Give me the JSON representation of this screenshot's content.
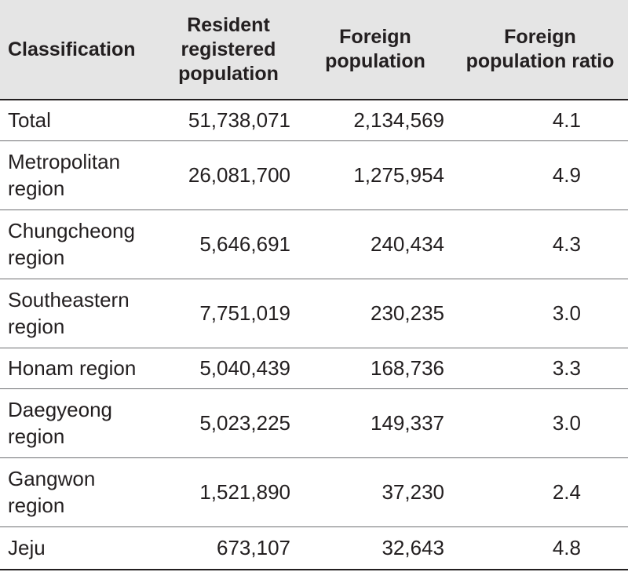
{
  "table": {
    "headers": {
      "classification": "Classification",
      "resident": "Resident registered population",
      "foreign": "Foreign population",
      "ratio": "Foreign population ratio"
    },
    "rows": [
      {
        "name": "Total",
        "resident": "51,738,071",
        "foreign": "2,134,569",
        "ratio": "4.1"
      },
      {
        "name": "Metropolitan region",
        "resident": "26,081,700",
        "foreign": "1,275,954",
        "ratio": "4.9"
      },
      {
        "name": "Chungcheong region",
        "resident": "5,646,691",
        "foreign": "240,434",
        "ratio": "4.3"
      },
      {
        "name": "Southeastern region",
        "resident": "7,751,019",
        "foreign": "230,235",
        "ratio": "3.0"
      },
      {
        "name": "Honam region",
        "resident": "5,040,439",
        "foreign": "168,736",
        "ratio": "3.3"
      },
      {
        "name": "Daegyeong region",
        "resident": "5,023,225",
        "foreign": "149,337",
        "ratio": "3.0"
      },
      {
        "name": "Gangwon region",
        "resident": "1,521,890",
        "foreign": "37,230",
        "ratio": "2.4"
      },
      {
        "name": "Jeju",
        "resident": "673,107",
        "foreign": "32,643",
        "ratio": "4.8"
      }
    ]
  }
}
